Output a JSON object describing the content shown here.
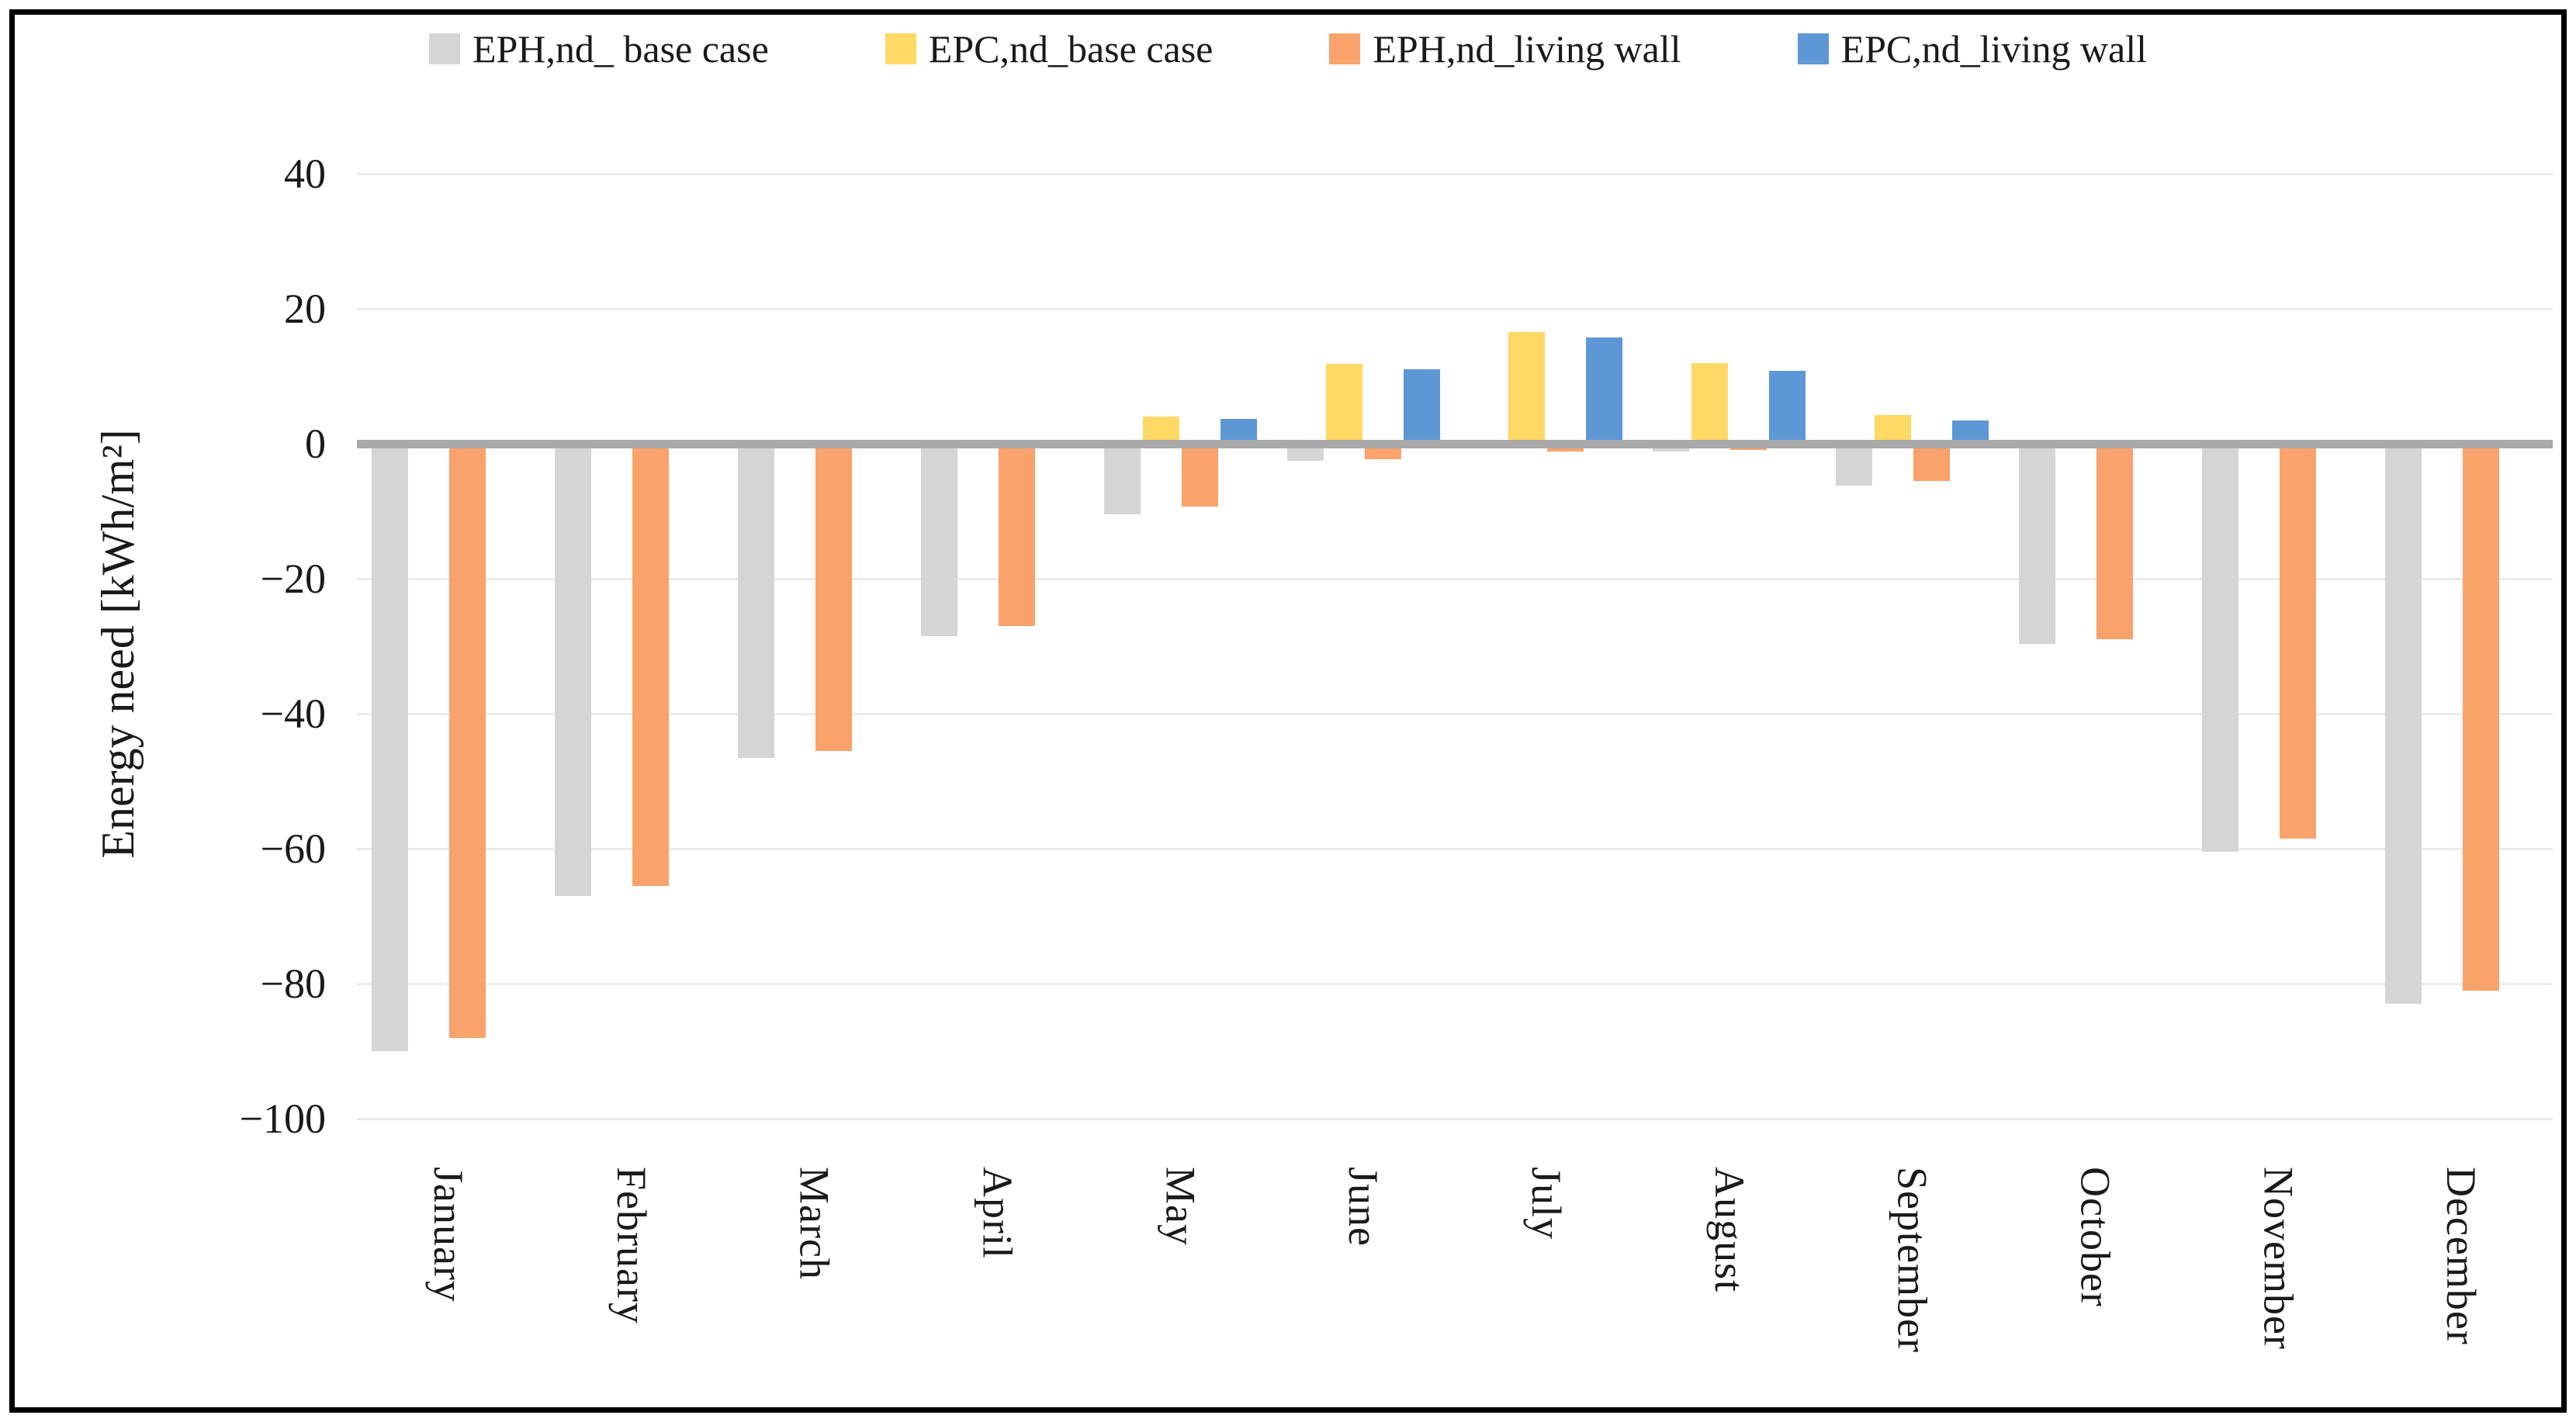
{
  "figure": {
    "background": "#ffffff",
    "border_color": "#000000"
  },
  "legend": {
    "position": "top",
    "items": [
      {
        "label": "EPH,nd_ base case",
        "color": "#d5d5d5"
      },
      {
        "label": "EPC,nd_base case",
        "color": "#ffd965"
      },
      {
        "label": "EPH,nd_living wall",
        "color": "#f9a26b"
      },
      {
        "label": "EPC,nd_living wall",
        "color": "#5d97d6"
      }
    ]
  },
  "y_axis": {
    "title": "Energy need [kWh/m²]",
    "tick_values": [
      40,
      20,
      0,
      -20,
      -40,
      -60,
      -80,
      -100
    ],
    "zero_line_color": "#a9a9a9",
    "gridline_color": "#ececec"
  },
  "chart_data": {
    "type": "bar",
    "title": "",
    "xlabel": "",
    "ylabel": "Energy need [kWh/m²]",
    "ylim": [
      -100,
      40
    ],
    "grid": "on",
    "legend_position": "top",
    "categories": [
      "January",
      "February",
      "March",
      "April",
      "May",
      "June",
      "July",
      "August",
      "September",
      "October",
      "November",
      "December"
    ],
    "series": [
      {
        "name": "EPH,nd_ base case",
        "color": "#d5d5d5",
        "values": [
          -90,
          -67,
          -46.5,
          -28.5,
          -10.5,
          -2.5,
          -0.5,
          -1.2,
          -6.2,
          -29.7,
          -60.5,
          -83
        ]
      },
      {
        "name": "EPC,nd_base case",
        "color": "#ffd965",
        "values": [
          0,
          0,
          0,
          0,
          4,
          11.8,
          16.5,
          12,
          4.2,
          0,
          0,
          0
        ]
      },
      {
        "name": "EPH,nd_living wall",
        "color": "#f9a26b",
        "values": [
          -88,
          -65.5,
          -45.5,
          -27,
          -9.3,
          -2.3,
          -1.2,
          -0.9,
          -5.5,
          -29,
          -58.5,
          -81
        ]
      },
      {
        "name": "EPC,nd_living wall",
        "color": "#5d97d6",
        "values": [
          0,
          0,
          0,
          0,
          3.7,
          11,
          15.8,
          10.8,
          3.4,
          0,
          0,
          0
        ]
      }
    ]
  }
}
